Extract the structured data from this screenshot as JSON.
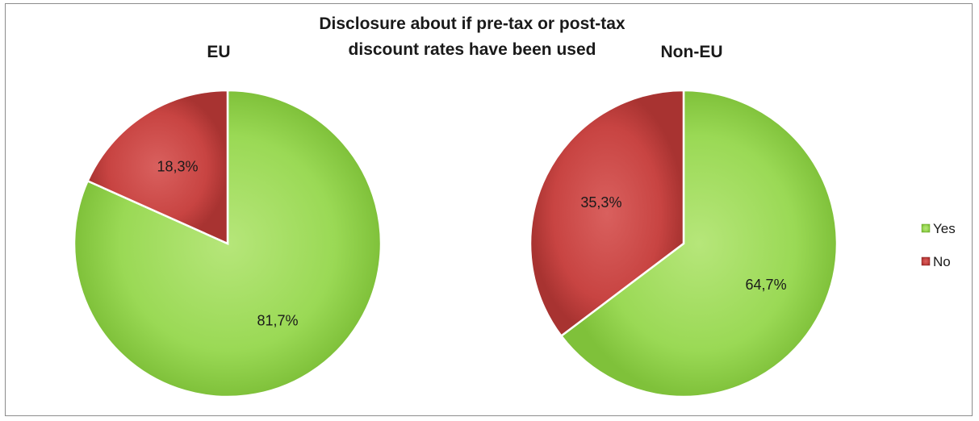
{
  "chart_data": {
    "type": "pie",
    "title": "Disclosure about if pre-tax or post-tax discount rates have been used",
    "title_lines": [
      "Disclosure about if pre-tax or post-tax",
      "discount  rates have been used"
    ],
    "legend": {
      "placement": "right",
      "entries": [
        {
          "label": "Yes",
          "color": "#92d050"
        },
        {
          "label": "No",
          "color": "#c0393b"
        }
      ]
    },
    "pies": [
      {
        "name": "EU",
        "categories": [
          "Yes",
          "No"
        ],
        "values": [
          81.7,
          18.3
        ],
        "data_labels": [
          "81,7%",
          "18,3%"
        ]
      },
      {
        "name": "Non-EU",
        "categories": [
          "Yes",
          "No"
        ],
        "values": [
          64.7,
          35.3
        ],
        "data_labels": [
          "64,7%",
          "35,3%"
        ]
      }
    ],
    "colors": {
      "Yes": "#92d050",
      "No": "#c0393b"
    }
  }
}
